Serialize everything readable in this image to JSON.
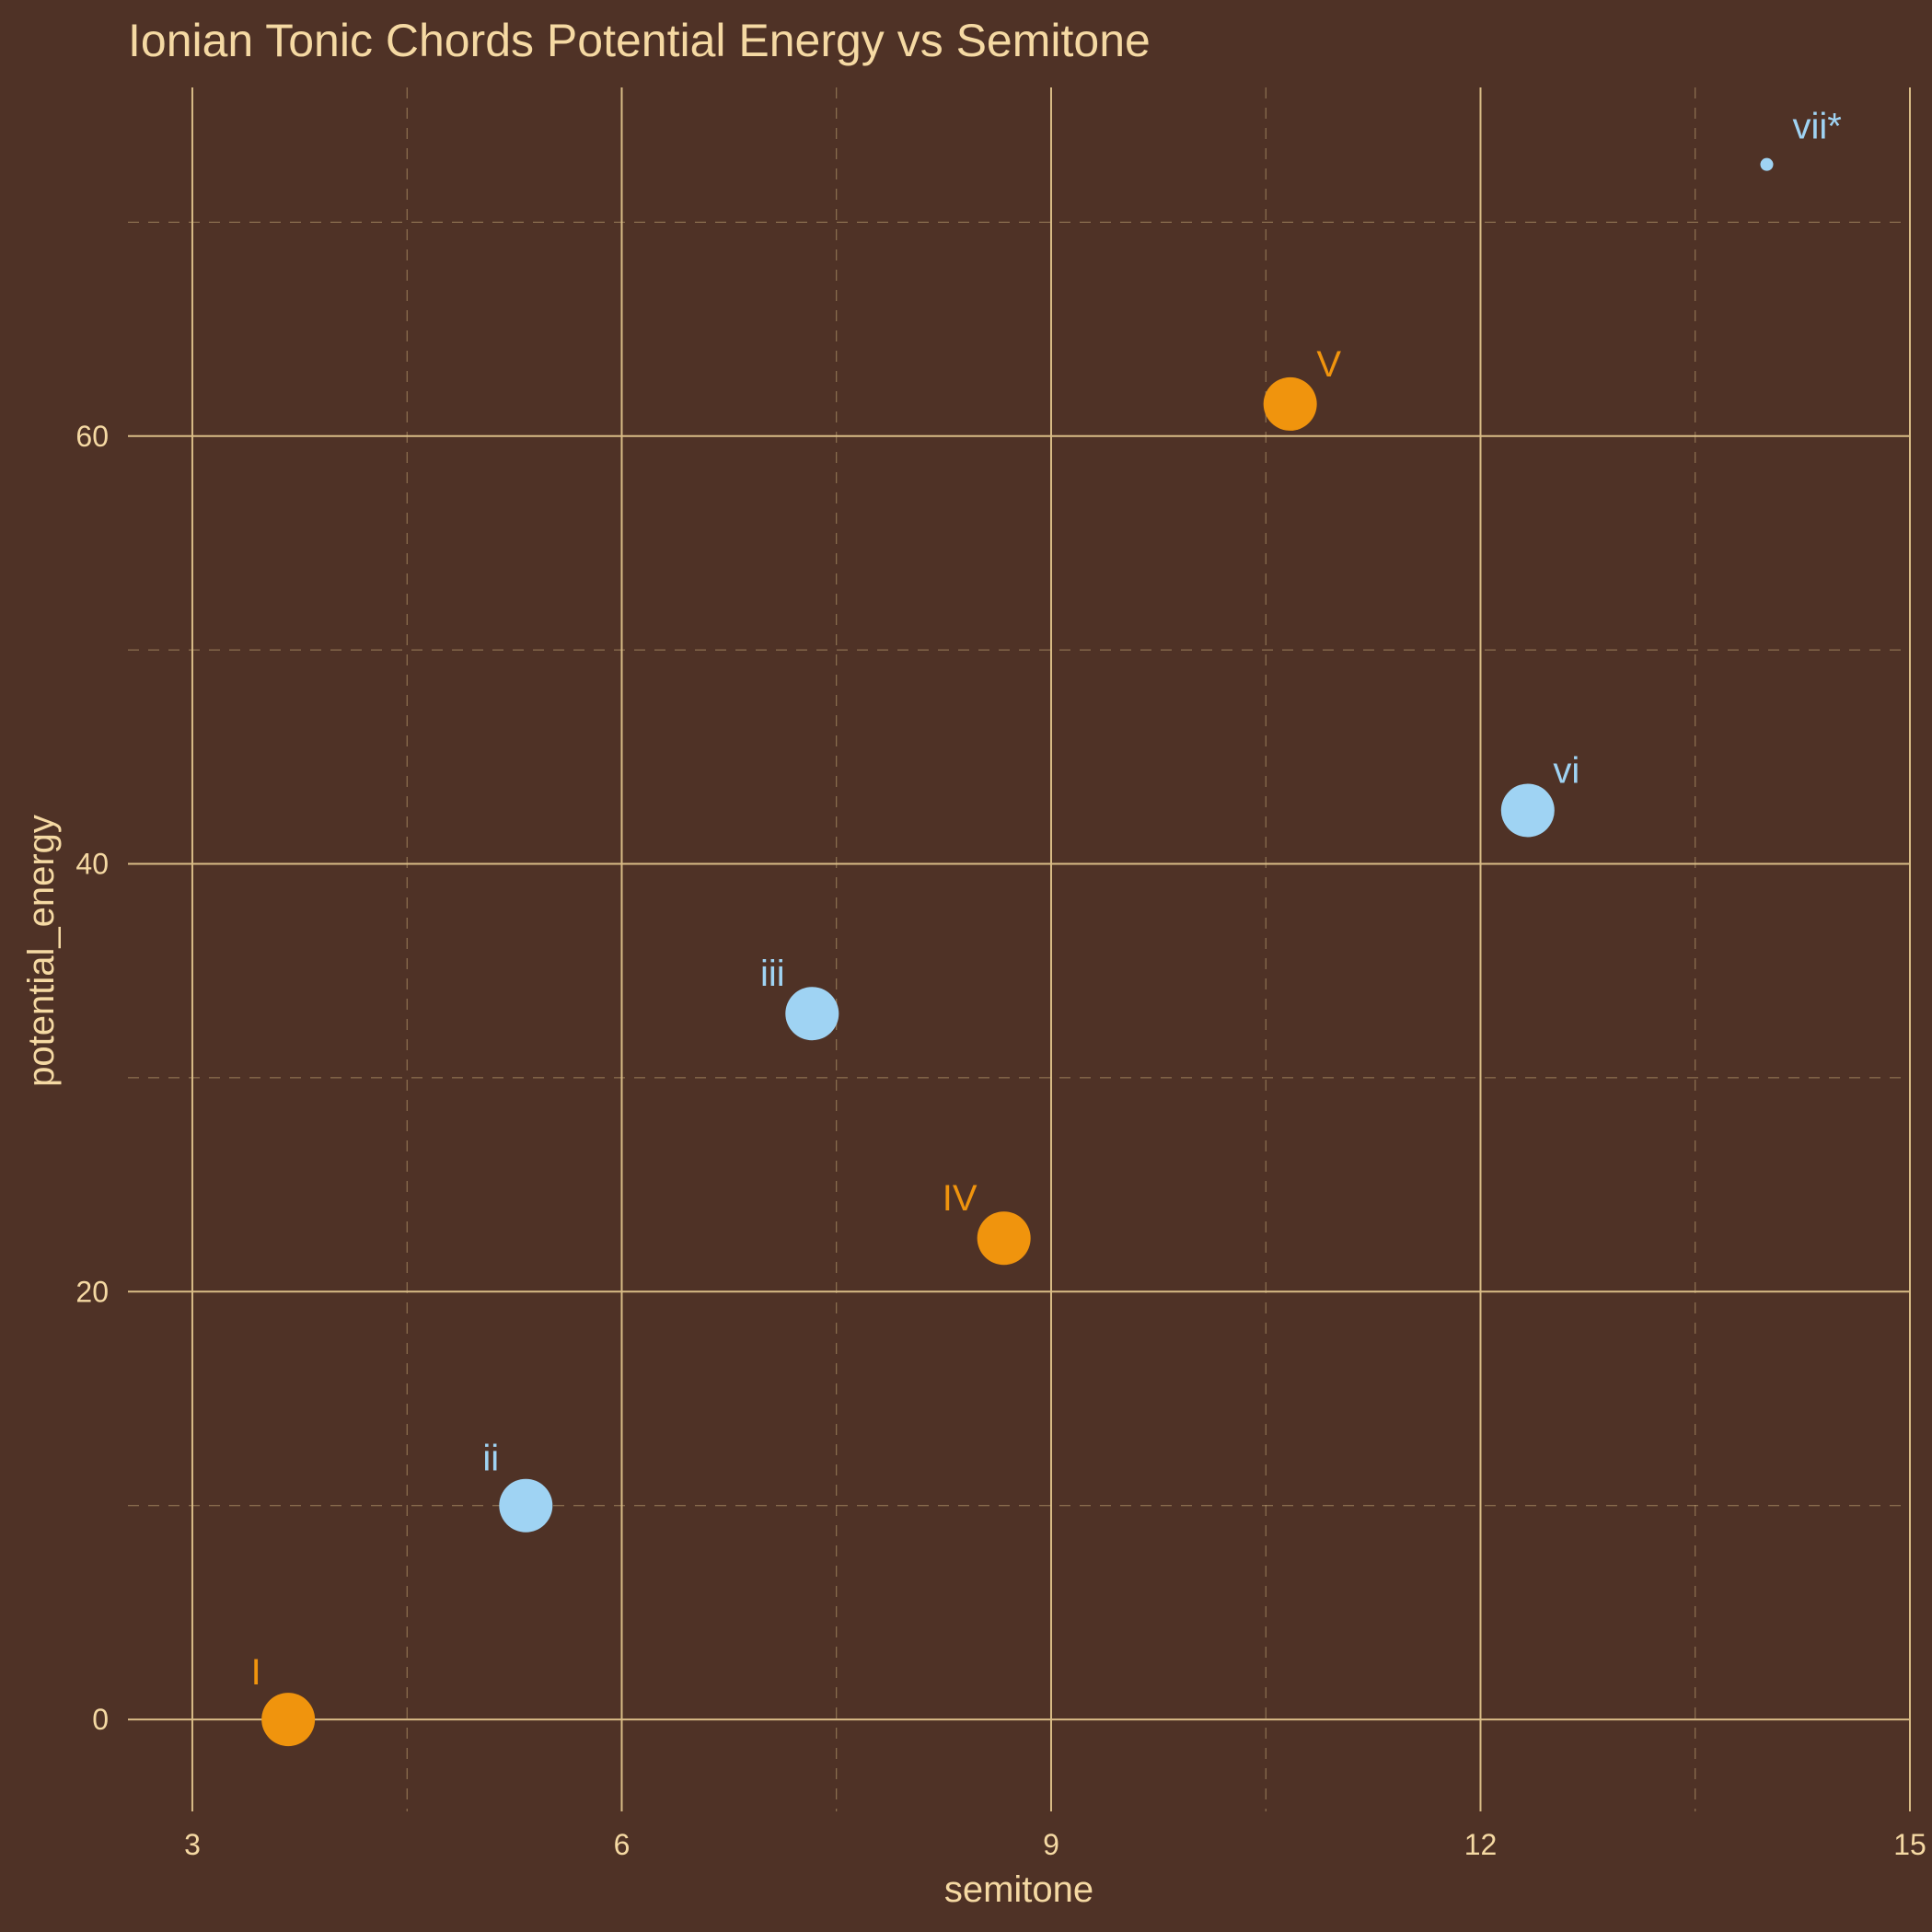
{
  "chart_data": {
    "type": "scatter",
    "title": "Ionian Tonic Chords Potential Energy vs Semitone",
    "xlabel": "semitone",
    "ylabel": "potential_energy",
    "xlim": [
      2.55,
      15.0
    ],
    "ylim": [
      -4.3,
      76.3
    ],
    "x_ticks": [
      3,
      6,
      9,
      12,
      15
    ],
    "x_tick_labels": [
      "3",
      "6",
      "9",
      "12",
      "15"
    ],
    "x_minor_ticks": [
      4.5,
      7.5,
      10.5,
      13.5
    ],
    "y_ticks": [
      0,
      20,
      40,
      60
    ],
    "y_tick_labels": [
      "0",
      "20",
      "40",
      "60"
    ],
    "y_minor_ticks": [
      10,
      30,
      50,
      70
    ],
    "grid": true,
    "legend": "none",
    "colors": {
      "background": "#4f3226",
      "grid": "#d9bc86",
      "text": "#f5d9a3",
      "major": "#f0940d",
      "minor": "#9fd3f3"
    },
    "points": [
      {
        "label": "I",
        "x": 3.67,
        "y": 0.0,
        "group": "major",
        "size": "large"
      },
      {
        "label": "ii",
        "x": 5.33,
        "y": 10.0,
        "group": "minor",
        "size": "large"
      },
      {
        "label": "iii",
        "x": 7.33,
        "y": 33.0,
        "group": "minor",
        "size": "large"
      },
      {
        "label": "IV",
        "x": 8.67,
        "y": 22.5,
        "group": "major",
        "size": "large"
      },
      {
        "label": "V",
        "x": 10.67,
        "y": 61.5,
        "group": "major",
        "size": "large"
      },
      {
        "label": "vi",
        "x": 12.33,
        "y": 42.5,
        "group": "minor",
        "size": "large"
      },
      {
        "label": "vii*",
        "x": 14.0,
        "y": 72.7,
        "group": "minor",
        "size": "small"
      }
    ]
  }
}
